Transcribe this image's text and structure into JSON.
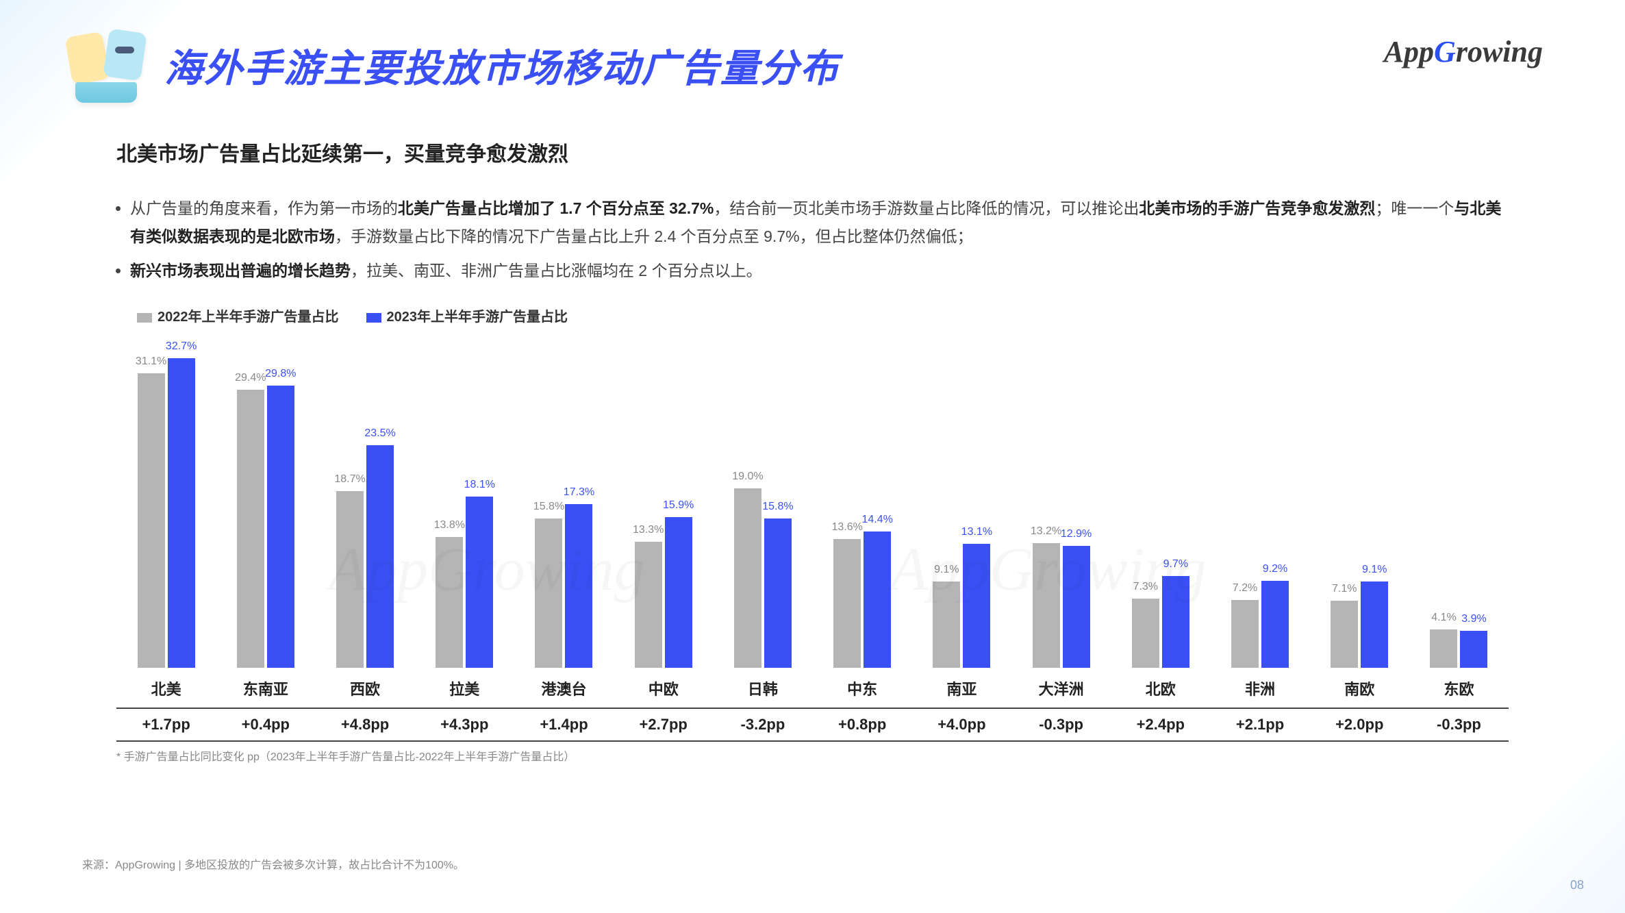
{
  "header": {
    "title": "海外手游主要投放市场移动广告量分布",
    "brand_prefix": "App",
    "brand_g": "G",
    "brand_suffix": "rowing"
  },
  "subtitle": "北美市场广告量占比延续第一，买量竞争愈发激烈",
  "bullets": [
    {
      "pre": "从广告量的角度来看，作为第一市场的",
      "b1": "北美广告量占比增加了 1.7 个百分点至 32.7%",
      "mid1": "，结合前一页北美市场手游数量占比降低的情况，可以推论出",
      "b2": "北美市场的手游广告竞争愈发激烈",
      "mid2": "；唯一一个",
      "b3": "与北美有类似数据表现的是北欧市场",
      "post": "，手游数量占比下降的情况下广告量占比上升 2.4 个百分点至 9.7%，但占比整体仍然偏低；"
    },
    {
      "b1": "新兴市场表现出普遍的增长趋势",
      "post": "，拉美、南亚、非洲广告量占比涨幅均在 2 个百分点以上。"
    }
  ],
  "legend": {
    "series": [
      {
        "label": "2022年上半年手游广告量占比",
        "color": "#b5b5b5"
      },
      {
        "label": "2023年上半年手游广告量占比",
        "color": "#3a50f5"
      }
    ]
  },
  "chart": {
    "type": "bar",
    "ylim_max": 34,
    "bar_colors": {
      "a": "#b5b5b5",
      "b": "#3a50f5"
    },
    "label_fontsize": 16,
    "cat_fontsize": 22,
    "categories": [
      "北美",
      "东南亚",
      "西欧",
      "拉美",
      "港澳台",
      "中欧",
      "日韩",
      "中东",
      "南亚",
      "大洋洲",
      "北欧",
      "非洲",
      "南欧",
      "东欧"
    ],
    "series_a": [
      31.1,
      29.4,
      18.7,
      13.8,
      15.8,
      13.3,
      19.0,
      13.6,
      9.1,
      13.2,
      7.3,
      7.2,
      7.1,
      4.1
    ],
    "series_b": [
      32.7,
      29.8,
      23.5,
      18.1,
      17.3,
      15.9,
      15.8,
      14.4,
      13.1,
      12.9,
      9.7,
      9.2,
      9.1,
      3.9
    ],
    "series_a_labels": [
      "31.1%",
      "29.4%",
      "18.7%",
      "13.8%",
      "15.8%",
      "13.3%",
      "19.0%",
      "13.6%",
      "9.1%",
      "13.2%",
      "7.3%",
      "7.2%",
      "7.1%",
      "4.1%"
    ],
    "series_b_labels": [
      "32.7%",
      "29.8%",
      "23.5%",
      "18.1%",
      "17.3%",
      "15.9%",
      "15.8%",
      "14.4%",
      "13.1%",
      "12.9%",
      "9.7%",
      "9.2%",
      "9.1%",
      "3.9%"
    ],
    "pp_row": [
      "+1.7pp",
      "+0.4pp",
      "+4.8pp",
      "+4.3pp",
      "+1.4pp",
      "+2.7pp",
      "-3.2pp",
      "+0.8pp",
      "+4.0pp",
      "-0.3pp",
      "+2.4pp",
      "+2.1pp",
      "+2.0pp",
      "-0.3pp"
    ]
  },
  "footnote1": "* 手游广告量占比同比变化 pp（2023年上半年手游广告量占比-2022年上半年手游广告量占比）",
  "source": "来源：AppGrowing | 多地区投放的广告会被多次计算，故占比合计不为100%。",
  "pagenum": "08",
  "watermark": "AppGrowing"
}
